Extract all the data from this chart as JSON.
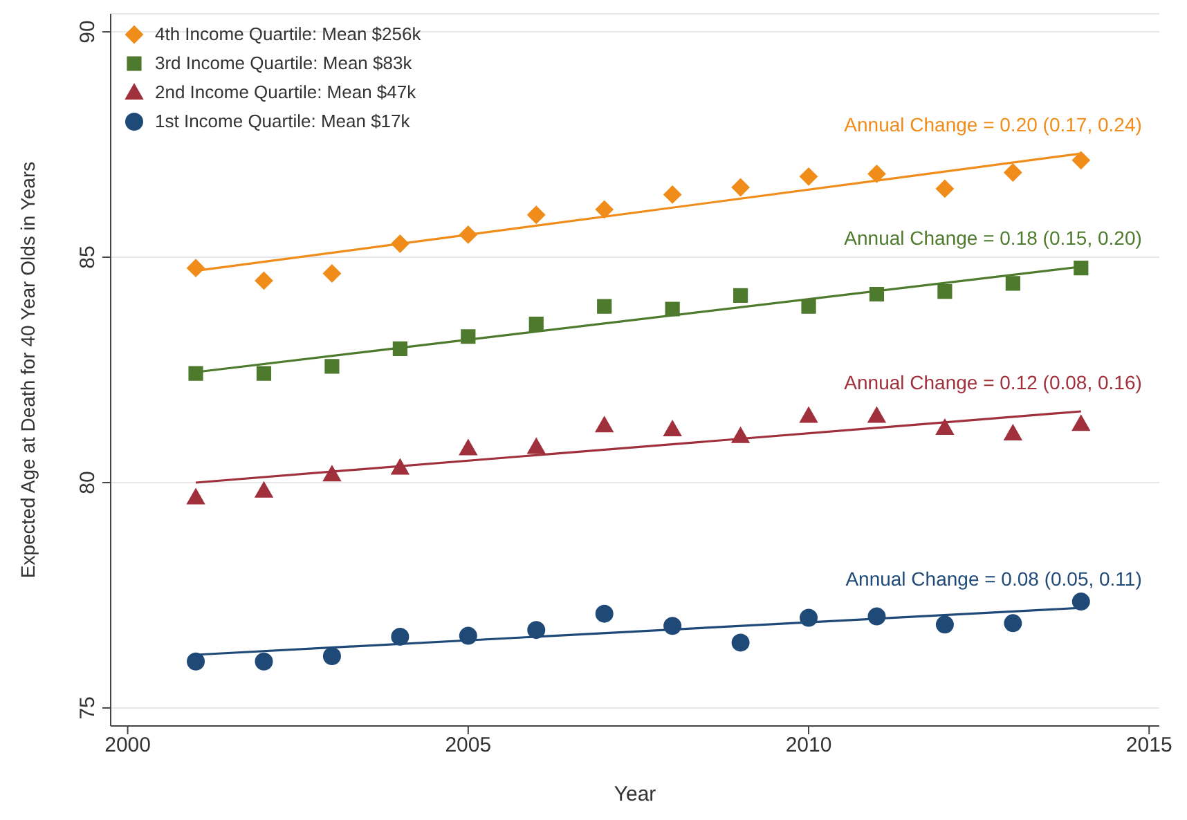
{
  "chart_data": {
    "type": "scatter",
    "xlabel": "Year",
    "ylabel": "Expected Age at Death for 40 Year Olds in Years",
    "xlim": [
      1999.75,
      2015.15
    ],
    "xticks": [
      2000,
      2005,
      2010,
      2015
    ],
    "ylim": [
      74.6,
      90.4
    ],
    "yticks": [
      75,
      80,
      85,
      90
    ],
    "grid": "y",
    "legend": "top left",
    "series": [
      {
        "name": "4th Income Quartile: Mean $256k",
        "color": "#f08c1a",
        "marker": "diamond",
        "x": [
          2001,
          2002,
          2003,
          2004,
          2005,
          2006,
          2007,
          2008,
          2009,
          2010,
          2011,
          2012,
          2013,
          2014
        ],
        "values": [
          84.76,
          84.48,
          84.64,
          85.3,
          85.5,
          85.94,
          86.06,
          86.39,
          86.55,
          86.79,
          86.85,
          86.52,
          86.88,
          87.15
        ]
      },
      {
        "name": "3rd Income Quartile: Mean $83k",
        "color": "#4d7a2c",
        "marker": "square",
        "x": [
          2001,
          2002,
          2003,
          2004,
          2005,
          2006,
          2007,
          2008,
          2009,
          2010,
          2011,
          2012,
          2013,
          2014
        ],
        "values": [
          82.42,
          82.42,
          82.58,
          82.97,
          83.24,
          83.52,
          83.91,
          83.85,
          84.15,
          83.91,
          84.18,
          84.24,
          84.42,
          84.76
        ]
      },
      {
        "name": "2nd Income Quartile: Mean $47k",
        "color": "#a0303c",
        "marker": "triangle",
        "x": [
          2001,
          2002,
          2003,
          2004,
          2005,
          2006,
          2007,
          2008,
          2009,
          2010,
          2011,
          2012,
          2013,
          2014
        ],
        "values": [
          79.67,
          79.82,
          80.18,
          80.33,
          80.76,
          80.79,
          81.27,
          81.18,
          81.03,
          81.48,
          81.48,
          81.21,
          81.09,
          81.3
        ]
      },
      {
        "name": "1st Income Quartile: Mean $17k",
        "color": "#1f4a78",
        "marker": "circle",
        "x": [
          2001,
          2002,
          2003,
          2004,
          2005,
          2006,
          2007,
          2008,
          2009,
          2010,
          2011,
          2012,
          2013,
          2014
        ],
        "values": [
          76.03,
          76.03,
          76.15,
          76.58,
          76.6,
          76.73,
          77.09,
          76.82,
          76.45,
          77.0,
          77.03,
          76.85,
          76.88,
          77.36
        ]
      },
      {
        "type": "line",
        "color": "#f08c1a",
        "marker": "none",
        "x": [
          2001,
          2014
        ],
        "values": [
          84.7,
          87.3
        ]
      },
      {
        "type": "line",
        "color": "#4d7a2c",
        "marker": "none",
        "x": [
          2001,
          2014
        ],
        "values": [
          82.45,
          84.79
        ]
      },
      {
        "type": "line",
        "color": "#a0303c",
        "marker": "none",
        "x": [
          2001,
          2014
        ],
        "values": [
          80.0,
          81.58
        ]
      },
      {
        "type": "line",
        "color": "#1f4a78",
        "marker": "none",
        "x": [
          2001,
          2014
        ],
        "values": [
          76.18,
          77.22
        ]
      }
    ],
    "annotations": [
      "Annual Change = 0.20 (0.17, 0.24)",
      "Annual Change = 0.18 (0.15, 0.20)",
      "Annual Change = 0.12 (0.08, 0.16)",
      "Annual Change = 0.08 (0.05, 0.11)"
    ]
  }
}
